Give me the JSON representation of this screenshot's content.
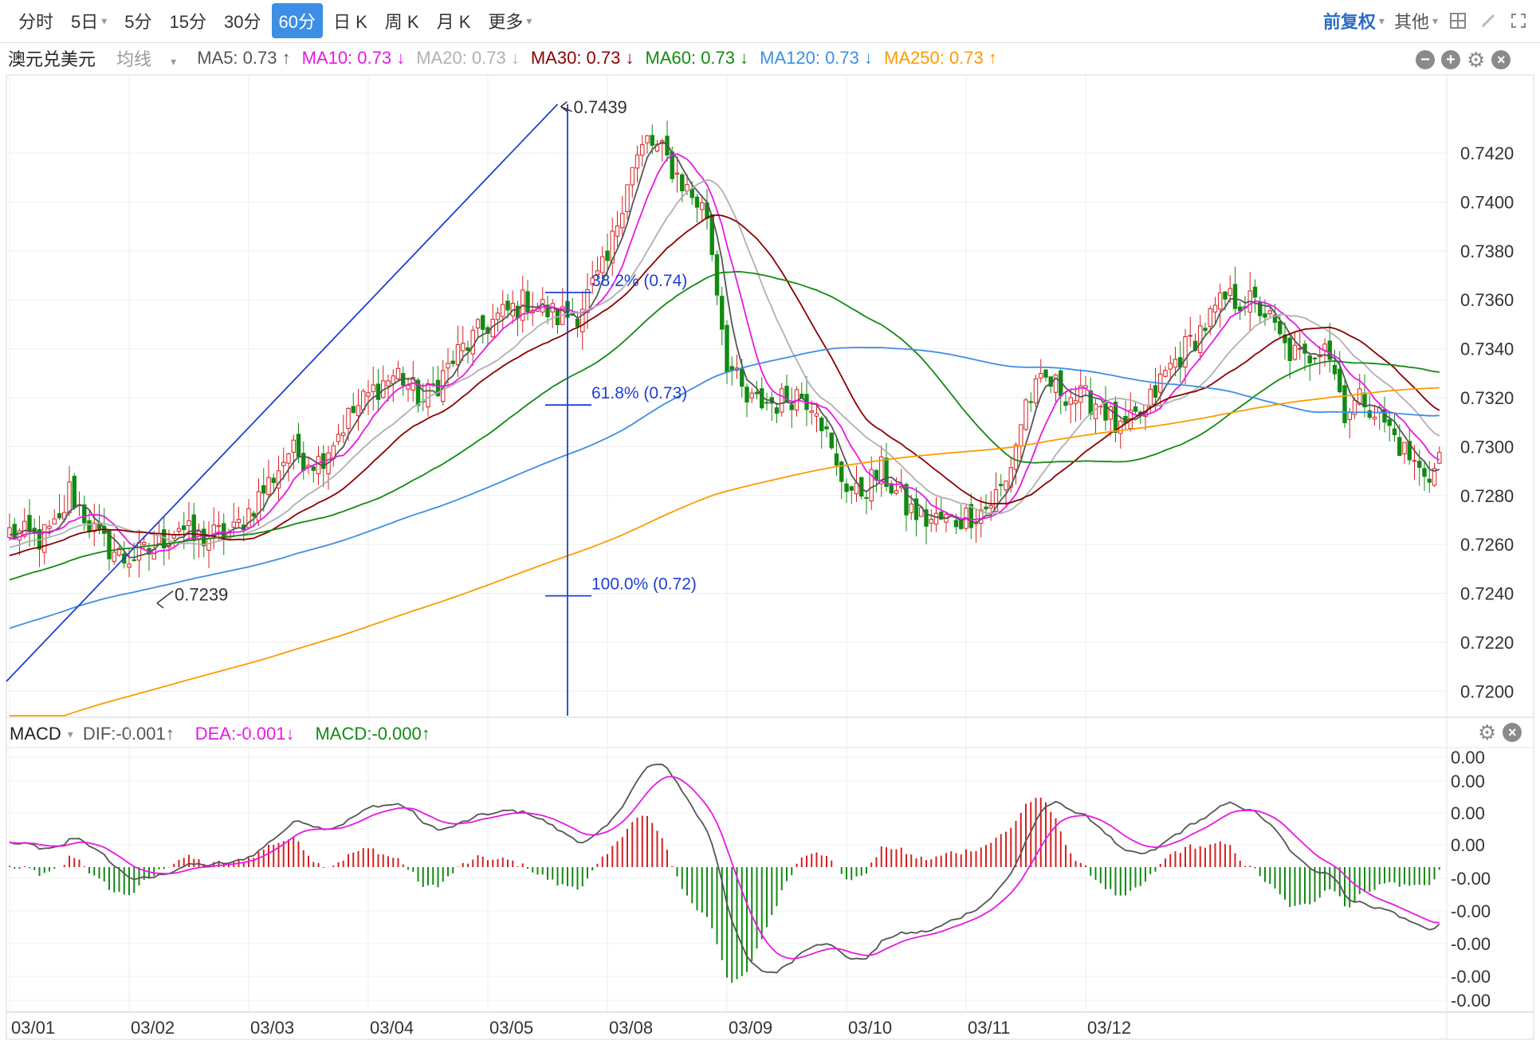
{
  "toolbar": {
    "tabs": [
      {
        "label": "分时"
      },
      {
        "label": "5日"
      },
      {
        "label": "5分"
      },
      {
        "label": "15分"
      },
      {
        "label": "30分"
      },
      {
        "label": "60分"
      },
      {
        "label": "日 K"
      },
      {
        "label": "周 K"
      },
      {
        "label": "月 K"
      },
      {
        "label": "更多"
      }
    ],
    "active": "60分",
    "adjust_label": "前复权",
    "other_label": "其他"
  },
  "main_panel": {
    "symbol": "澳元兑美元",
    "ma_type": "均线",
    "ma_items": [
      {
        "label": "MA5: 0.73 ↑",
        "color": "#555555"
      },
      {
        "label": "MA10: 0.73 ↓",
        "color": "#e619e6"
      },
      {
        "label": "MA20: 0.73 ↓",
        "color": "#b0b0b0"
      },
      {
        "label": "MA30: 0.73 ↓",
        "color": "#8b0000"
      },
      {
        "label": "MA60: 0.73 ↓",
        "color": "#118a11"
      },
      {
        "label": "MA120: 0.73 ↓",
        "color": "#3d8ee5"
      },
      {
        "label": "MA250: 0.73 ↑",
        "color": "#ff9900"
      }
    ]
  },
  "macd_panel": {
    "name": "MACD",
    "dif_label": "DIF:-0.001↑",
    "dea_label": "DEA:-0.001↓",
    "macd_label": "MACD:-0.000↑",
    "y_tick_labels": [
      "0.00",
      "0.00",
      "0.00",
      "0.00",
      "-0.00",
      "-0.00",
      "-0.00",
      "-0.00",
      "-0.00"
    ]
  },
  "chart_data": {
    "type": "candlestick",
    "x_labels": [
      "03/01",
      "03/02",
      "03/03",
      "03/04",
      "03/05",
      "03/08",
      "03/09",
      "03/10",
      "03/11",
      "03/12"
    ],
    "y_ticks": [
      0.72,
      0.722,
      0.724,
      0.726,
      0.728,
      0.73,
      0.732,
      0.734,
      0.736,
      0.738,
      0.74,
      0.742
    ],
    "y_tick_labels": [
      "0.7200",
      "0.7220",
      "0.7240",
      "0.7260",
      "0.7280",
      "0.7300",
      "0.7320",
      "0.7340",
      "0.7360",
      "0.7380",
      "0.7400",
      "0.7420"
    ],
    "ylim": [
      0.719,
      0.745
    ],
    "bars_per_day": 24,
    "close_path_points": [
      [
        0,
        0.7265
      ],
      [
        6,
        0.7262
      ],
      [
        10,
        0.7268
      ],
      [
        12,
        0.7282
      ],
      [
        18,
        0.7262
      ],
      [
        23,
        0.7254
      ],
      [
        28,
        0.7257
      ],
      [
        34,
        0.7268
      ],
      [
        37,
        0.7262
      ],
      [
        45,
        0.7265
      ],
      [
        52,
        0.7285
      ],
      [
        56,
        0.7298
      ],
      [
        62,
        0.7294
      ],
      [
        68,
        0.7312
      ],
      [
        74,
        0.7325
      ],
      [
        78,
        0.733
      ],
      [
        83,
        0.7318
      ],
      [
        90,
        0.7338
      ],
      [
        96,
        0.735
      ],
      [
        104,
        0.736
      ],
      [
        110,
        0.7353
      ],
      [
        114,
        0.7355
      ],
      [
        120,
        0.7375
      ],
      [
        124,
        0.741
      ],
      [
        128,
        0.7425
      ],
      [
        131,
        0.742
      ],
      [
        136,
        0.7405
      ],
      [
        140,
        0.7395
      ],
      [
        144,
        0.7335
      ],
      [
        148,
        0.7318
      ],
      [
        154,
        0.7318
      ],
      [
        158,
        0.7322
      ],
      [
        162,
        0.7318
      ],
      [
        166,
        0.729
      ],
      [
        170,
        0.728
      ],
      [
        175,
        0.729
      ],
      [
        180,
        0.7275
      ],
      [
        184,
        0.727
      ],
      [
        190,
        0.727
      ],
      [
        196,
        0.7275
      ],
      [
        200,
        0.7285
      ],
      [
        204,
        0.7318
      ],
      [
        208,
        0.7327
      ],
      [
        214,
        0.732
      ],
      [
        219,
        0.7318
      ],
      [
        223,
        0.7305
      ],
      [
        228,
        0.7315
      ],
      [
        232,
        0.733
      ],
      [
        238,
        0.7345
      ],
      [
        244,
        0.736
      ],
      [
        248,
        0.736
      ],
      [
        252,
        0.7355
      ],
      [
        256,
        0.734
      ],
      [
        260,
        0.7335
      ],
      [
        264,
        0.7345
      ],
      [
        268,
        0.7315
      ],
      [
        272,
        0.732
      ],
      [
        276,
        0.731
      ],
      [
        280,
        0.7298
      ],
      [
        283,
        0.729
      ],
      [
        286,
        0.729
      ],
      [
        287,
        0.7297
      ]
    ],
    "annotations": {
      "high_label": "0.7439",
      "low_label": "0.7239",
      "fib_levels": [
        {
          "label": "38.2% (0.74)",
          "value": 0.7363
        },
        {
          "label": "61.8% (0.73)",
          "value": 0.7317
        },
        {
          "label": "100.0% (0.72)",
          "value": 0.7239
        }
      ]
    },
    "moving_averages": [
      "MA5",
      "MA10",
      "MA20",
      "MA30",
      "MA60",
      "MA120",
      "MA250"
    ],
    "ma_colors": {
      "MA5": "#555555",
      "MA10": "#e619e6",
      "MA20": "#b0b0b0",
      "MA30": "#8b0000",
      "MA60": "#118a11",
      "MA120": "#3d8ee5",
      "MA250": "#ff9900"
    },
    "macd": {
      "series": [
        "DIF",
        "DEA",
        "MACD"
      ],
      "colors": {
        "DIF": "#555555",
        "DEA": "#e619e6",
        "up": "#d62020",
        "down": "#118a11"
      }
    },
    "grid": true
  }
}
